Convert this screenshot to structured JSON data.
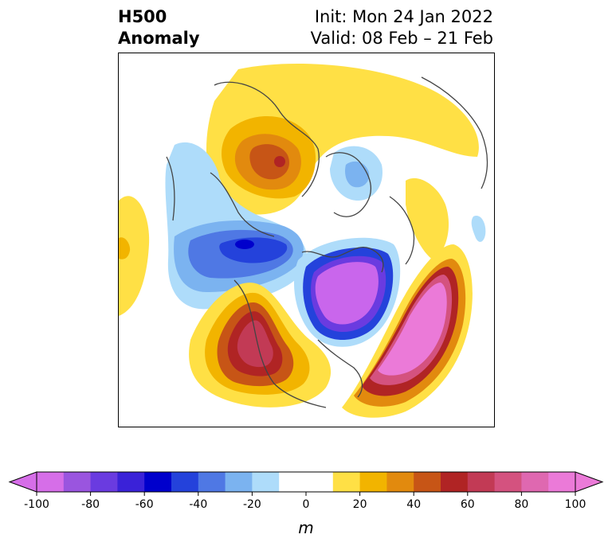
{
  "title": {
    "left_line1": "H500",
    "left_line2": "Anomaly",
    "right_line1": "Init: Mon 24 Jan 2022",
    "right_line2": "Valid: 08 Feb – 21 Feb"
  },
  "colorbar": {
    "units": "m",
    "ticks": [
      "-100",
      "-80",
      "-60",
      "-40",
      "-20",
      "0",
      "20",
      "40",
      "60",
      "80",
      "100"
    ],
    "range": [
      -100,
      100
    ],
    "extend": "both",
    "colors": [
      "#d66ee8",
      "#9a55df",
      "#6a3be0",
      "#3a22d8",
      "#0000cc",
      "#2442db",
      "#4f78e4",
      "#7bb3f0",
      "#aedcfa",
      "#ffffff",
      "#ffffff",
      "#ffe045",
      "#f2b400",
      "#e28a0e",
      "#c75516",
      "#b02424",
      "#c23a55",
      "#d4527f",
      "#df68b0",
      "#eb7ad8"
    ],
    "over_color": "#eb7ad8",
    "under_color": "#d66ee8"
  },
  "map": {
    "projection": "north-polar-stereographic",
    "field": "500 hPa geopotential height anomaly"
  }
}
